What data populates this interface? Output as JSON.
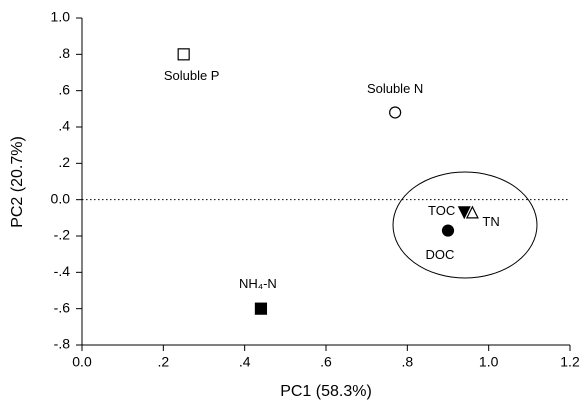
{
  "chart_data": {
    "type": "scatter",
    "xlabel": "PC1 (58.3%)",
    "ylabel": "PC2 (20.7%)",
    "xlim": [
      0,
      1.2
    ],
    "xticks": [
      {
        "value": 0,
        "label": "0.0"
      },
      {
        "value": 0.2,
        "label": ".2"
      },
      {
        "value": 0.4,
        "label": ".4"
      },
      {
        "value": 0.6,
        "label": ".6"
      },
      {
        "value": 0.8,
        "label": ".8"
      },
      {
        "value": 1,
        "label": "1.0"
      },
      {
        "value": 1.2,
        "label": "1.2"
      }
    ],
    "ylim": [
      -0.8,
      1
    ],
    "yticks": [
      {
        "value": 1,
        "label": "1.0"
      },
      {
        "value": 0.8,
        "label": ".8"
      },
      {
        "value": 0.6,
        "label": ".6"
      },
      {
        "value": 0.4,
        "label": ".4"
      },
      {
        "value": 0.2,
        "label": ".2"
      },
      {
        "value": 0,
        "label": "0.0"
      },
      {
        "value": -0.2,
        "label": "-.2"
      },
      {
        "value": -0.4,
        "label": "-.4"
      },
      {
        "value": -0.6,
        "label": "-.6"
      },
      {
        "value": -0.8,
        "label": "-.8"
      }
    ],
    "series": [
      {
        "name": "Soluble P",
        "marker": "square-open",
        "color": "#000000",
        "x": [
          0.25
        ],
        "values": [
          0.8
        ]
      },
      {
        "name": "Soluble N",
        "marker": "circle-open",
        "color": "#000000",
        "x": [
          0.77
        ],
        "values": [
          0.48
        ]
      },
      {
        "name": "TOC",
        "marker": "triangle-down-filled",
        "color": "#000000",
        "x": [
          0.94
        ],
        "values": [
          -0.07
        ]
      },
      {
        "name": "TN",
        "marker": "triangle-up-open",
        "color": "#000000",
        "x": [
          0.96
        ],
        "values": [
          -0.07
        ]
      },
      {
        "name": "DOC",
        "marker": "circle-filled",
        "color": "#000000",
        "x": [
          0.9
        ],
        "values": [
          -0.17
        ]
      },
      {
        "name": "NH₄-N",
        "marker": "square-filled",
        "color": "#000000",
        "x": [
          0.44
        ],
        "values": [
          -0.6
        ]
      }
    ]
  }
}
